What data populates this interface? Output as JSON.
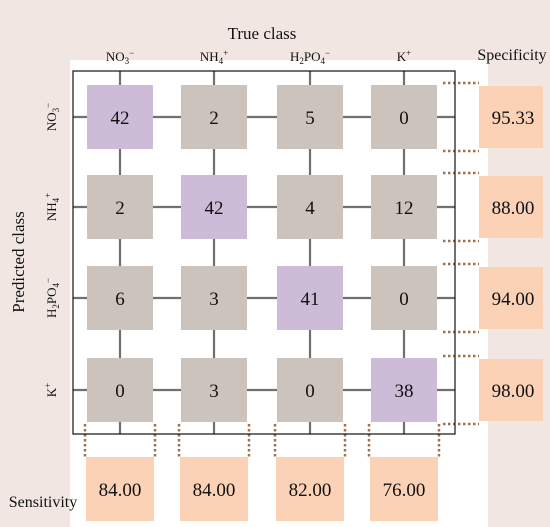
{
  "chart_data": {
    "type": "heatmap",
    "title": "",
    "xlabel": "True class",
    "ylabel": "Predicted class",
    "true_classes": [
      {
        "base": "NO",
        "sub": "3",
        "sup": "−"
      },
      {
        "base": "NH",
        "sub": "4",
        "sup": "+"
      },
      {
        "base": "H2PO",
        "sub": "4",
        "sup": "−"
      },
      {
        "base": "K",
        "sub": "",
        "sup": "+"
      }
    ],
    "predicted_classes": [
      {
        "base": "NO",
        "sub": "3",
        "sup": "−"
      },
      {
        "base": "NH",
        "sub": "4",
        "sup": "+"
      },
      {
        "base": "H2PO",
        "sub": "4",
        "sup": "−"
      },
      {
        "base": "K",
        "sub": "",
        "sup": "+"
      }
    ],
    "matrix": [
      [
        42,
        2,
        5,
        0
      ],
      [
        2,
        42,
        4,
        12
      ],
      [
        6,
        3,
        41,
        0
      ],
      [
        0,
        3,
        0,
        38
      ]
    ],
    "specificity_label": "Specificity",
    "specificity": [
      "95.33",
      "88.00",
      "94.00",
      "98.00"
    ],
    "sensitivity_label": "Sensitivity",
    "sensitivity": [
      "84.00",
      "84.00",
      "82.00",
      "76.00"
    ],
    "colors": {
      "diagonal": "#cdbcd8",
      "off_diagonal": "#cdc3bd",
      "metric_box": "#fbd2b6",
      "page_bg": "#f2e6e3",
      "grid_line": "#707070",
      "dotted": "#a0704a"
    }
  }
}
